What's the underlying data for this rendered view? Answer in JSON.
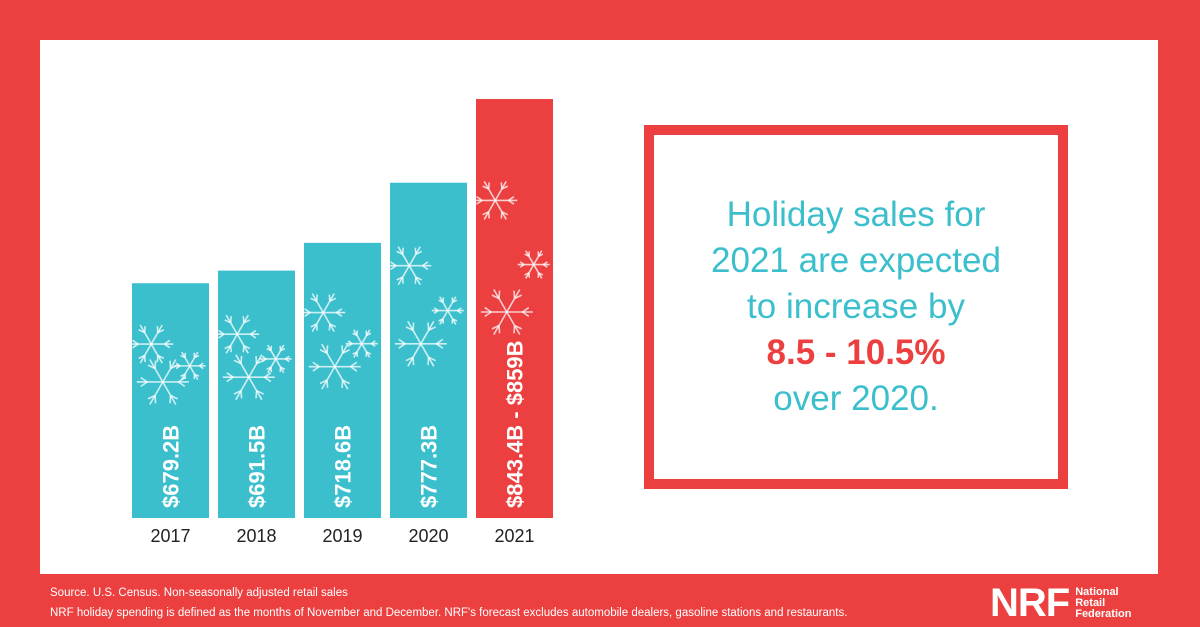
{
  "chart_data": {
    "type": "bar",
    "categories": [
      "2017",
      "2018",
      "2019",
      "2020",
      "2021"
    ],
    "values": [
      679.2,
      691.5,
      718.6,
      777.3,
      859
    ],
    "value_labels": [
      "$679.2B",
      "$691.5B",
      "$718.6B",
      "$777.3B",
      "$843.4B - $859B"
    ],
    "forecast_low": 843.4,
    "title": "",
    "xlabel": "",
    "ylabel": "",
    "colors": {
      "bar": "#3bbfcd",
      "forecast_bar": "#ec3f3f"
    },
    "grid": false
  },
  "callout": {
    "line1": "Holiday sales for",
    "line2": "2021 are expected",
    "line3": "to increase by",
    "highlight": "8.5 - 10.5%",
    "line5": "over 2020."
  },
  "footer": {
    "source": "Source. U.S. Census. Non-seasonally adjusted retail sales",
    "note": "NRF holiday spending is defined as the months of November and December. NRF's forecast excludes automobile dealers, gasoline stations and restaurants."
  },
  "logo": {
    "mark": "NRF",
    "name_line1": "National",
    "name_line2": "Retail",
    "name_line3": "Federation"
  },
  "colors": {
    "background": "#ec3f3f",
    "panel": "#ffffff",
    "teal": "#3bbfcd",
    "red": "#ec3f3f"
  }
}
